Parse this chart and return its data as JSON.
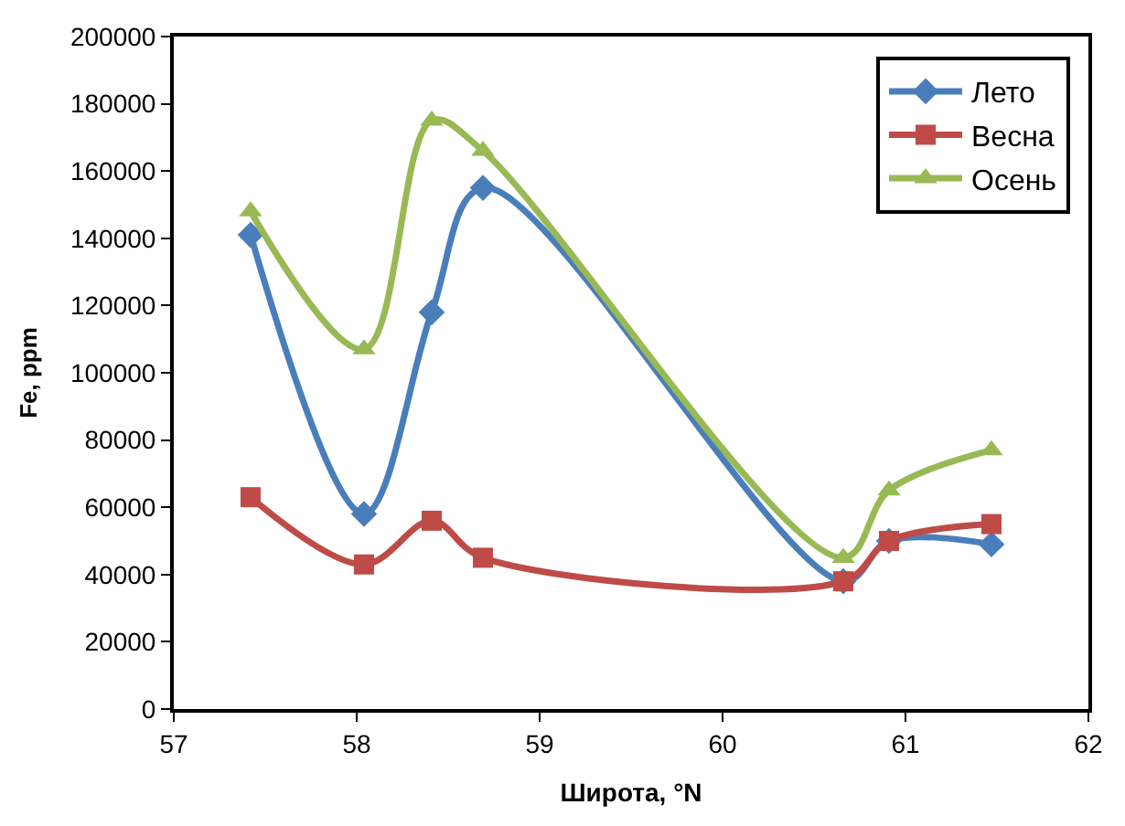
{
  "chart_data": {
    "type": "line",
    "xlabel": "Широта, °N",
    "ylabel": "Fe, ppm",
    "x": [
      57.42,
      58.04,
      58.41,
      58.69,
      60.66,
      60.91,
      61.47
    ],
    "series": [
      {
        "name": "Лето",
        "color": "#4a7ebb",
        "marker": "diamond",
        "values": [
          141000,
          58000,
          118000,
          155000,
          38000,
          50000,
          49000
        ]
      },
      {
        "name": "Весна",
        "color": "#be4b48",
        "marker": "square",
        "values": [
          63000,
          43000,
          56000,
          45000,
          38000,
          50000,
          55000
        ]
      },
      {
        "name": "Осень",
        "color": "#98b954",
        "marker": "triangle",
        "values": [
          148000,
          107000,
          175000,
          166000,
          45000,
          65000,
          77000
        ]
      }
    ],
    "xlim": [
      57,
      62
    ],
    "xticks": [
      57,
      58,
      59,
      60,
      61,
      62
    ],
    "ylim": [
      0,
      200000
    ],
    "yticks": [
      0,
      20000,
      40000,
      60000,
      80000,
      100000,
      120000,
      140000,
      160000,
      180000,
      200000
    ],
    "legend": "top right",
    "line_style": "solid"
  }
}
